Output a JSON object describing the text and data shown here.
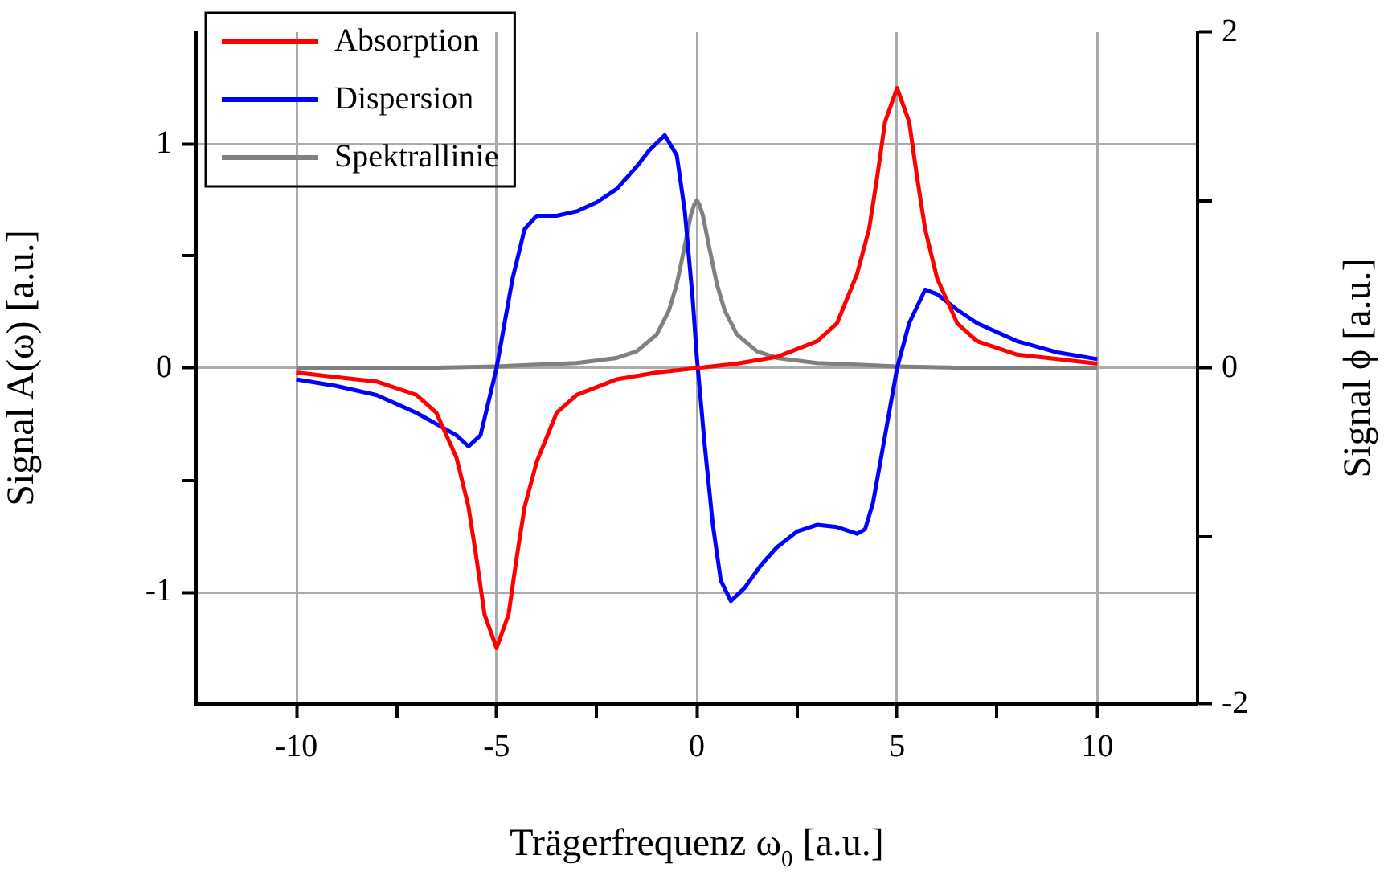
{
  "chart_data": {
    "type": "line",
    "xlabel": "Trägerfrequenz ω$_{0}$ [a.u.]",
    "ylabel": "Signal A(ω) [a.u.]",
    "y2label": "Signal ϕ [a.u.]",
    "xlim": [
      -12.5,
      12.5
    ],
    "xticks": [
      -10,
      {
        "value": -7.5,
        "label": null
      },
      -5,
      {
        "value": -2.5,
        "label": null
      },
      0,
      {
        "value": 2.5,
        "label": null
      },
      5,
      {
        "value": 7.5,
        "label": null
      },
      10
    ],
    "ylim": [
      -1.5,
      1.5
    ],
    "yticks": [
      -1,
      {
        "value": -0.5,
        "label": null
      },
      0,
      {
        "value": 0.5,
        "label": null
      },
      1
    ],
    "y2lim": [
      -2,
      2
    ],
    "y2ticks": [
      -2,
      {
        "value": -1,
        "label": null
      },
      0,
      {
        "value": 1,
        "label": null
      },
      2
    ],
    "grid": true,
    "legend": "top left",
    "marker": "none",
    "line_style": "solid",
    "series": [
      {
        "name": "Absorption",
        "color": "#ff0000",
        "x": [
          -10,
          -9,
          -8,
          -7,
          -6.5,
          -6,
          -5.7,
          -5.5,
          -5.3,
          -5,
          -4.7,
          -4.5,
          -4.3,
          -4,
          -3.5,
          -3,
          -2,
          -1,
          0,
          1,
          2,
          3,
          3.5,
          4,
          4.3,
          4.5,
          4.7,
          5,
          5.3,
          5.5,
          5.7,
          6,
          6.5,
          7,
          8,
          9,
          10
        ],
        "values": [
          -0.02,
          -0.04,
          -0.06,
          -0.12,
          -0.2,
          -0.4,
          -0.62,
          -0.85,
          -1.1,
          -1.25,
          -1.1,
          -0.85,
          -0.62,
          -0.42,
          -0.2,
          -0.12,
          -0.05,
          -0.02,
          0,
          0.02,
          0.05,
          0.12,
          0.2,
          0.42,
          0.62,
          0.85,
          1.1,
          1.25,
          1.1,
          0.85,
          0.62,
          0.4,
          0.2,
          0.12,
          0.06,
          0.04,
          0.02
        ]
      },
      {
        "name": "Dispersion",
        "color": "#0000ff",
        "x": [
          -10,
          -9,
          -8,
          -7,
          -6.5,
          -6,
          -5.7,
          -5.4,
          -5.2,
          -5,
          -4.8,
          -4.6,
          -4.3,
          -4,
          -3.5,
          -3,
          -2.5,
          -2,
          -1.5,
          -1.2,
          -0.8,
          -0.5,
          -0.3,
          -0.1,
          0,
          0.2,
          0.4,
          0.6,
          0.85,
          1.2,
          1.6,
          2,
          2.5,
          3,
          3.5,
          4,
          4.2,
          4.4,
          4.7,
          5,
          5.3,
          5.7,
          6,
          6.5,
          7,
          8,
          9,
          10
        ],
        "values": [
          -0.05,
          -0.08,
          -0.12,
          -0.2,
          -0.25,
          -0.3,
          -0.35,
          -0.3,
          -0.15,
          0,
          0.2,
          0.4,
          0.62,
          0.68,
          0.68,
          0.7,
          0.74,
          0.8,
          0.9,
          0.97,
          1.04,
          0.95,
          0.7,
          0.3,
          0.05,
          -0.35,
          -0.7,
          -0.95,
          -1.04,
          -0.98,
          -0.88,
          -0.8,
          -0.73,
          -0.7,
          -0.71,
          -0.74,
          -0.72,
          -0.6,
          -0.3,
          0,
          0.2,
          0.35,
          0.33,
          0.26,
          0.2,
          0.12,
          0.07,
          0.04
        ]
      },
      {
        "name": "Spektrallinie",
        "color": "#808080",
        "axis": "y2",
        "x": [
          -10,
          -7,
          -5,
          -4,
          -3,
          -2,
          -1.5,
          -1,
          -0.7,
          -0.5,
          -0.3,
          -0.15,
          -0.07,
          0,
          0.07,
          0.15,
          0.3,
          0.5,
          0.7,
          1,
          1.5,
          2,
          3,
          4,
          5,
          7,
          10
        ],
        "values": [
          0,
          0,
          0.01,
          0.02,
          0.03,
          0.06,
          0.1,
          0.2,
          0.34,
          0.5,
          0.73,
          0.91,
          0.97,
          1,
          0.97,
          0.91,
          0.73,
          0.5,
          0.34,
          0.2,
          0.1,
          0.06,
          0.03,
          0.02,
          0.01,
          0,
          0
        ]
      }
    ]
  }
}
